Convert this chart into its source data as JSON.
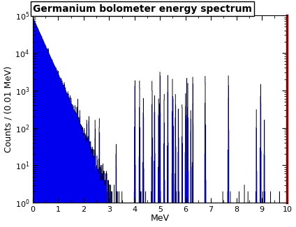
{
  "title": "Germanium bolometer energy spectrum",
  "xlabel": "MeV",
  "ylabel": "Counts / (0.01 MeV)",
  "xlim": [
    0,
    10
  ],
  "ylim": [
    1,
    100000.0
  ],
  "bin_width": 0.01,
  "n_bins": 1000,
  "background_color": "#ffffff",
  "fill_color": "#0000ee",
  "edge_color": "#000000",
  "border_color_right": "#8b0000",
  "title_fontsize": 10,
  "axis_label_fontsize": 9,
  "tick_fontsize": 8,
  "seed": 42,
  "continuum_scale": 90000,
  "continuum_decay": 3.5,
  "gamma_peaks": [
    {
      "energy": 0.186,
      "strength": 800
    },
    {
      "energy": 0.238,
      "strength": 600
    },
    {
      "energy": 0.352,
      "strength": 1200
    },
    {
      "energy": 0.583,
      "strength": 500
    },
    {
      "energy": 0.609,
      "strength": 2500
    },
    {
      "energy": 0.768,
      "strength": 300
    },
    {
      "energy": 0.911,
      "strength": 400
    },
    {
      "energy": 0.964,
      "strength": 350
    },
    {
      "energy": 1.001,
      "strength": 600
    },
    {
      "energy": 1.12,
      "strength": 250
    },
    {
      "energy": 1.155,
      "strength": 200
    },
    {
      "energy": 1.238,
      "strength": 500
    },
    {
      "energy": 1.28,
      "strength": 200
    },
    {
      "energy": 1.378,
      "strength": 180
    },
    {
      "energy": 1.401,
      "strength": 160
    },
    {
      "energy": 1.46,
      "strength": 200
    },
    {
      "energy": 1.509,
      "strength": 200
    },
    {
      "energy": 1.661,
      "strength": 150
    },
    {
      "energy": 1.729,
      "strength": 180
    },
    {
      "energy": 1.764,
      "strength": 400
    },
    {
      "energy": 1.848,
      "strength": 150
    },
    {
      "energy": 2.118,
      "strength": 120
    },
    {
      "energy": 2.204,
      "strength": 200
    },
    {
      "energy": 2.447,
      "strength": 150
    },
    {
      "energy": 2.614,
      "strength": 200
    },
    {
      "energy": 3.272,
      "strength": 40
    },
    {
      "energy": 4.012,
      "strength": 2000
    },
    {
      "energy": 4.198,
      "strength": 2000
    },
    {
      "energy": 4.344,
      "strength": 600
    },
    {
      "energy": 4.687,
      "strength": 1800
    },
    {
      "energy": 4.785,
      "strength": 700
    },
    {
      "energy": 4.945,
      "strength": 600
    },
    {
      "energy": 4.999,
      "strength": 3500
    },
    {
      "energy": 5.162,
      "strength": 900
    },
    {
      "energy": 5.305,
      "strength": 2500
    },
    {
      "energy": 5.49,
      "strength": 2500
    },
    {
      "energy": 5.512,
      "strength": 700
    },
    {
      "energy": 5.607,
      "strength": 800
    },
    {
      "energy": 5.721,
      "strength": 400
    },
    {
      "energy": 5.869,
      "strength": 500
    },
    {
      "energy": 6.003,
      "strength": 800
    },
    {
      "energy": 6.051,
      "strength": 2500
    },
    {
      "energy": 6.09,
      "strength": 2000
    },
    {
      "energy": 6.207,
      "strength": 300
    },
    {
      "energy": 6.288,
      "strength": 2500
    },
    {
      "energy": 6.778,
      "strength": 2500
    },
    {
      "energy": 7.687,
      "strength": 2500
    },
    {
      "energy": 8.785,
      "strength": 300
    },
    {
      "energy": 8.954,
      "strength": 1500
    },
    {
      "energy": 9.1,
      "strength": 200
    }
  ]
}
